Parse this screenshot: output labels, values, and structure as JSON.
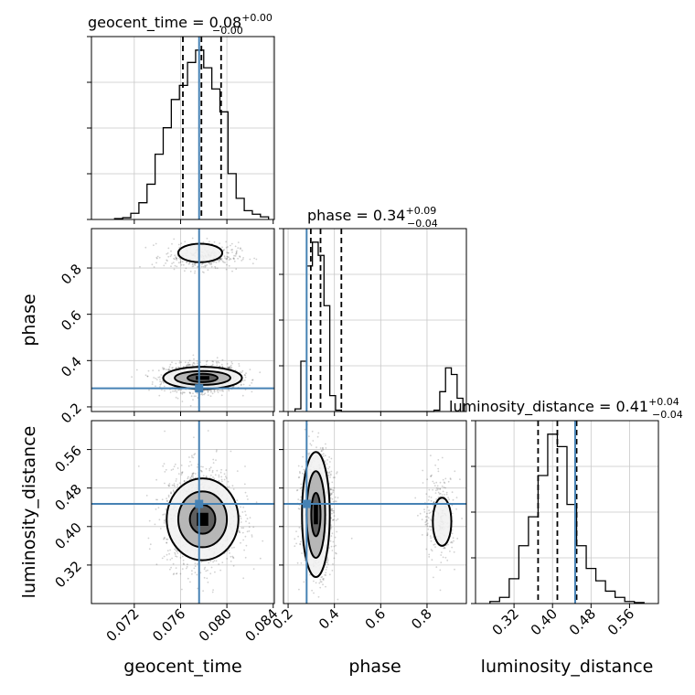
{
  "chart_data": {
    "type": "corner",
    "parameters": [
      "geocent_time",
      "phase",
      "luminosity_distance"
    ],
    "truths": {
      "geocent_time": 0.0776,
      "phase": 0.28,
      "luminosity_distance": 0.447
    },
    "truth_color": "#4682b4",
    "titles": [
      {
        "param": "geocent_time",
        "text": "geocent_time = 0.08",
        "sup": "+0.00",
        "sub": "−0.00"
      },
      {
        "param": "phase",
        "text": "phase = 0.34",
        "sup": "+0.09",
        "sub": "−0.04"
      },
      {
        "param": "luminosity_distance",
        "text": "luminosity_distance = 0.41",
        "sup": "+0.04",
        "sub": "−0.04"
      }
    ],
    "xlabels": {
      "geocent_time": "geocent_time",
      "phase": "phase",
      "luminosity_distance": "luminosity_distance"
    },
    "ylabels": {
      "phase": "phase",
      "luminosity_distance": "luminosity_distance"
    },
    "ticks": {
      "geocent_time": [
        "0.072",
        "0.076",
        "0.080",
        "0.084"
      ],
      "phase": [
        "0.2",
        "0.4",
        "0.6",
        "0.8"
      ],
      "luminosity_distance": [
        "0.32",
        "0.40",
        "0.48",
        "0.56"
      ]
    },
    "tick_values": {
      "geocent_time": [
        0.072,
        0.076,
        0.08,
        0.084
      ],
      "phase": [
        0.2,
        0.4,
        0.6,
        0.8
      ],
      "luminosity_distance": [
        0.32,
        0.4,
        0.48,
        0.56
      ]
    },
    "ranges": {
      "geocent_time": [
        0.0683,
        0.0841
      ],
      "phase": [
        0.18,
        0.97
      ],
      "luminosity_distance": [
        0.24,
        0.62
      ]
    },
    "quantiles": {
      "geocent_time": [
        0.0762,
        0.0778,
        0.0795
      ],
      "phase": [
        0.298,
        0.34,
        0.43
      ],
      "luminosity_distance": [
        0.37,
        0.41,
        0.45
      ]
    },
    "histograms": {
      "geocent_time": {
        "edges": [
          0.0703,
          0.071,
          0.0717,
          0.0724,
          0.0731,
          0.0738,
          0.0745,
          0.0752,
          0.0759,
          0.0766,
          0.0773,
          0.078,
          0.0787,
          0.0794,
          0.0801,
          0.0808,
          0.0815,
          0.0822,
          0.0829,
          0.0836
        ],
        "counts": [
          0.5,
          1.0,
          3.5,
          9.5,
          20,
          37,
          52,
          68,
          76,
          89,
          96,
          86,
          74,
          61,
          26,
          12,
          5,
          3,
          1.5
        ]
      },
      "phase": {
        "edges": [
          0.23,
          0.255,
          0.28,
          0.305,
          0.33,
          0.355,
          0.38,
          0.405,
          0.43,
          0.455,
          0.48,
          0.505,
          0.53,
          0.555,
          0.58,
          0.605,
          0.63,
          0.655,
          0.68,
          0.705,
          0.73,
          0.755,
          0.78,
          0.805,
          0.83,
          0.855,
          0.88,
          0.905,
          0.93,
          0.955
        ],
        "counts": [
          2,
          38,
          110,
          128,
          118,
          80,
          12,
          1,
          0,
          0,
          0,
          0,
          0,
          0,
          0,
          0,
          0,
          0,
          0,
          0,
          0,
          0,
          0,
          0,
          1,
          15,
          33,
          28,
          10
        ]
      },
      "luminosity_distance": {
        "edges": [
          0.27,
          0.29,
          0.31,
          0.33,
          0.35,
          0.37,
          0.39,
          0.41,
          0.43,
          0.45,
          0.47,
          0.49,
          0.51,
          0.53,
          0.55,
          0.57,
          0.59
        ],
        "counts": [
          1,
          3,
          12,
          28,
          42,
          62,
          82,
          76,
          48,
          28,
          17,
          11,
          6,
          3,
          1,
          0.5
        ]
      }
    },
    "samples": {
      "clusters": [
        {
          "param_x": "geocent_time",
          "param_y": "phase",
          "cx": 0.0778,
          "cy": 0.325,
          "sx": 0.0016,
          "sy": 0.03,
          "n": 1300
        },
        {
          "param_x": "geocent_time",
          "param_y": "phase",
          "cx": 0.0778,
          "cy": 0.85,
          "sx": 0.0016,
          "sy": 0.03,
          "n": 380
        },
        {
          "param_x": "geocent_time",
          "param_y": "luminosity_distance",
          "cx": 0.0778,
          "cy": 0.42,
          "sx": 0.0016,
          "sy": 0.05,
          "n": 1500
        },
        {
          "param_x": "phase",
          "param_y": "luminosity_distance",
          "cx": 0.325,
          "cy": 0.43,
          "sx": 0.035,
          "sy": 0.06,
          "n": 1200
        },
        {
          "param_x": "phase",
          "param_y": "luminosity_distance",
          "cx": 0.855,
          "cy": 0.42,
          "sx": 0.035,
          "sy": 0.045,
          "n": 300
        }
      ]
    },
    "contours": [
      {
        "param_x": "geocent_time",
        "param_y": "phase",
        "cx": 0.0779,
        "cy": 0.325,
        "levels": [
          {
            "rx": 0.0034,
            "ry": 0.048
          },
          {
            "rx": 0.0024,
            "ry": 0.03
          },
          {
            "rx": 0.0013,
            "ry": 0.018
          }
        ]
      },
      {
        "param_x": "geocent_time",
        "param_y": "phase",
        "cx": 0.0777,
        "cy": 0.865,
        "levels": [
          {
            "rx": 0.0019,
            "ry": 0.04
          }
        ]
      },
      {
        "param_x": "geocent_time",
        "param_y": "luminosity_distance",
        "cx": 0.0779,
        "cy": 0.415,
        "levels": [
          {
            "rx": 0.0031,
            "ry": 0.085
          },
          {
            "rx": 0.0021,
            "ry": 0.058
          },
          {
            "rx": 0.0011,
            "ry": 0.03
          }
        ]
      },
      {
        "param_x": "phase",
        "param_y": "luminosity_distance",
        "cx": 0.32,
        "cy": 0.425,
        "levels": [
          {
            "rx": 0.06,
            "ry": 0.13
          },
          {
            "rx": 0.04,
            "ry": 0.09
          },
          {
            "rx": 0.02,
            "ry": 0.045
          }
        ]
      },
      {
        "param_x": "phase",
        "param_y": "luminosity_distance",
        "cx": 0.865,
        "cy": 0.41,
        "levels": [
          {
            "rx": 0.04,
            "ry": 0.05
          }
        ]
      }
    ],
    "grid": true
  }
}
